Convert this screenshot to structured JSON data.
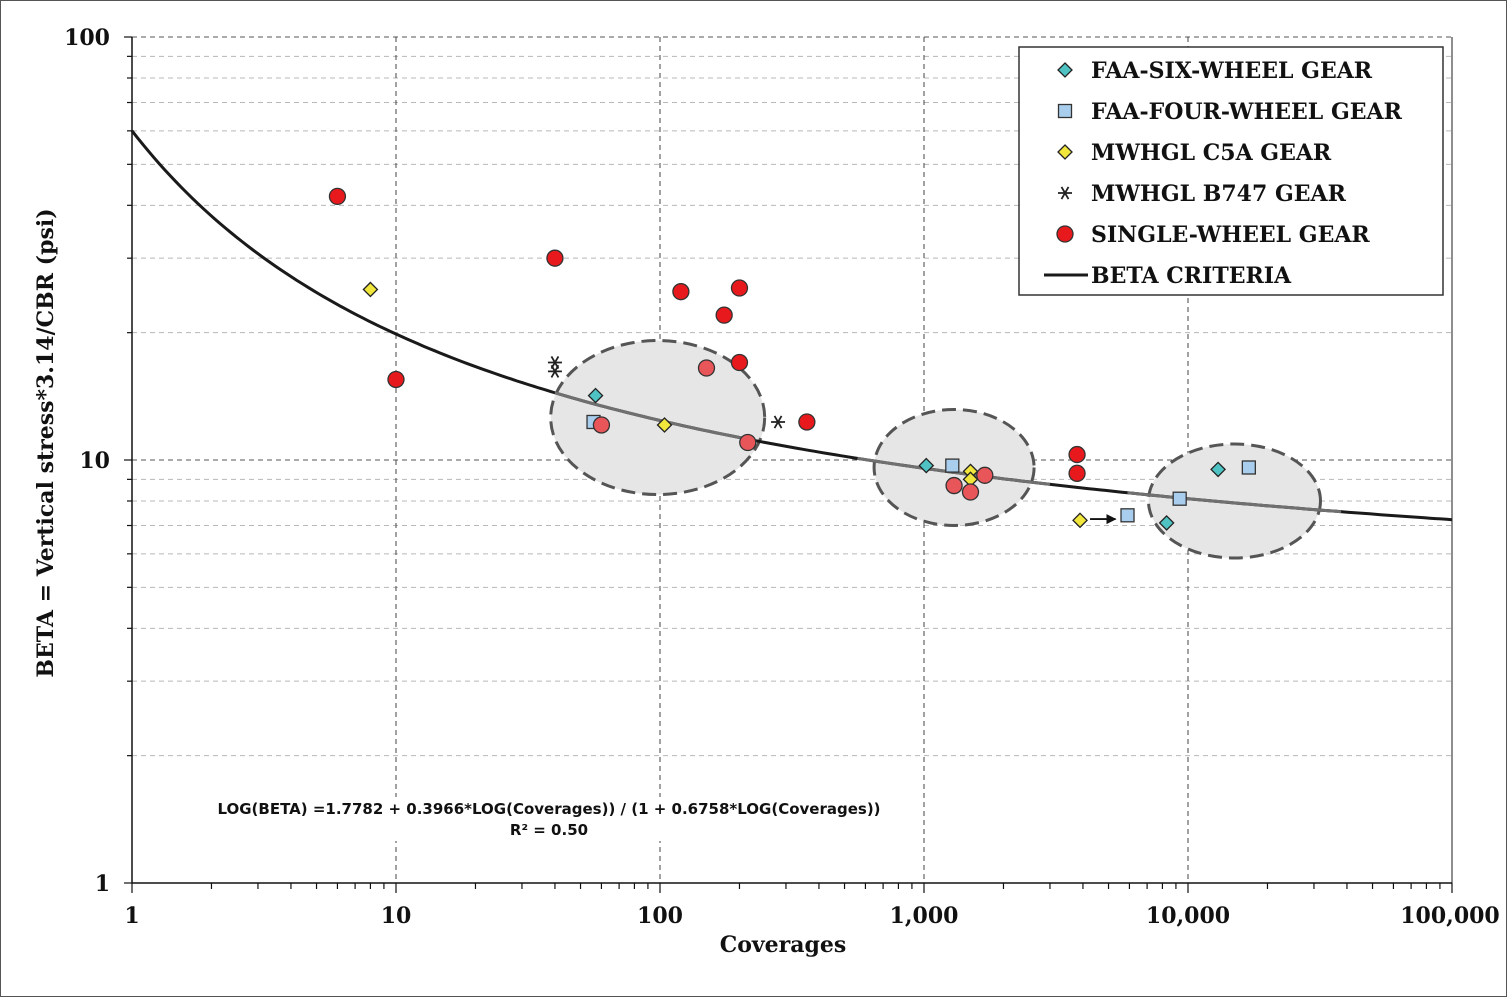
{
  "chart_data": {
    "type": "scatter",
    "xlabel": "Coverages",
    "ylabel": "BETA = Vertical stress*3.14/CBR  (psi)",
    "x_scale": "log",
    "y_scale": "log",
    "xlim": [
      1,
      100000
    ],
    "ylim": [
      1,
      100
    ],
    "grid": true,
    "legend_position": "top-right",
    "x_ticks": [
      {
        "value": 1,
        "label": "1"
      },
      {
        "value": 10,
        "label": "10"
      },
      {
        "value": 100,
        "label": "100"
      },
      {
        "value": 1000,
        "label": "1,000"
      },
      {
        "value": 10000,
        "label": "10,000"
      },
      {
        "value": 100000,
        "label": "100,000"
      }
    ],
    "y_ticks": [
      {
        "value": 1,
        "label": "1"
      },
      {
        "value": 10,
        "label": "10"
      },
      {
        "value": 100,
        "label": "100"
      }
    ],
    "series": [
      {
        "name": "FAA-SIX-WHEEL GEAR",
        "marker": "diamond",
        "color": "#4fc3c3",
        "points": [
          [
            57,
            14.2
          ],
          [
            1020,
            9.7
          ],
          [
            13000,
            9.5
          ],
          [
            8300,
            7.1
          ]
        ]
      },
      {
        "name": "FAA-FOUR-WHEEL GEAR",
        "marker": "square",
        "color": "#a9cdec",
        "points": [
          [
            56,
            12.3
          ],
          [
            1280,
            9.7
          ],
          [
            17000,
            9.6
          ],
          [
            9300,
            8.1
          ],
          [
            5900,
            7.4
          ]
        ]
      },
      {
        "name": "MWHGL C5A GEAR",
        "marker": "diamond",
        "color": "#f0e63c",
        "points": [
          [
            8,
            25.3
          ],
          [
            104,
            12.1
          ],
          [
            1500,
            9.4
          ],
          [
            1500,
            9.0
          ],
          [
            3900,
            7.2
          ]
        ]
      },
      {
        "name": "MWHGL B747 GEAR",
        "marker": "asterisk",
        "color": "#222222",
        "points": [
          [
            40,
            17.0
          ],
          [
            40,
            16.2
          ],
          [
            280,
            12.3
          ]
        ]
      },
      {
        "name": "SINGLE-WHEEL GEAR",
        "marker": "circle",
        "color": "#e8191c",
        "points": [
          [
            6,
            42.0
          ],
          [
            10,
            15.5
          ],
          [
            40,
            30.0
          ],
          [
            120,
            25.0
          ],
          [
            200,
            25.5
          ],
          [
            175,
            22.0
          ],
          [
            200,
            17.0
          ],
          [
            150,
            16.5
          ],
          [
            60,
            12.1
          ],
          [
            215,
            11.0
          ],
          [
            360,
            12.3
          ],
          [
            1300,
            8.7
          ],
          [
            1500,
            8.4
          ],
          [
            1700,
            9.2
          ],
          [
            3800,
            10.3
          ],
          [
            3800,
            9.3
          ]
        ]
      },
      {
        "name": "BETA CRITERIA",
        "marker": "line",
        "color": "#1a1a1a",
        "formula": "LOG(BETA) = (1.7782 + 0.3966*LOG(Coverages)) / (1 + 0.6758*LOG(Coverages))"
      }
    ],
    "annotations": {
      "equation": "LOG(BETA) =1.7782 + 0.3966*LOG(Coverages)) / (1 + 0.6758*LOG(Coverages))",
      "r_squared": "R² = 0.50"
    }
  },
  "colors": {
    "six_wheel": "#4fc3c3",
    "four_wheel": "#a9cdec",
    "c5a": "#f0e63c",
    "b747": "#222222",
    "single_wheel": "#e8191c",
    "curve": "#1a1a1a",
    "ellipse_fill": "#e6e6e6",
    "ellipse_stroke": "#555555"
  }
}
